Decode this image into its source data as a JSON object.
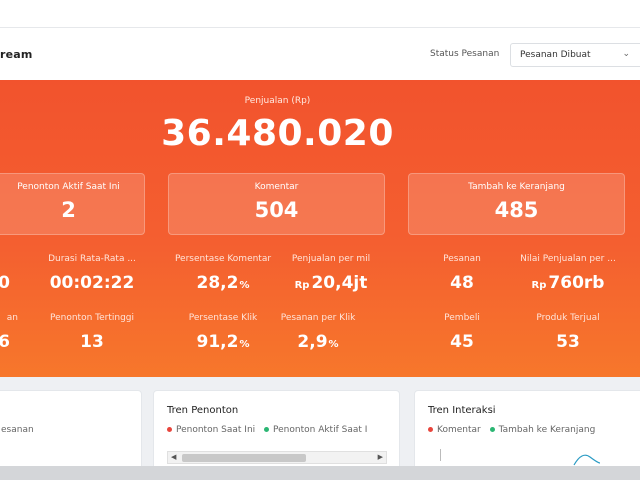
{
  "header": {
    "title": "ream",
    "status_label": "Status Pesanan",
    "status_select": "Pesanan Dibuat"
  },
  "banner": {
    "main_label": "Penjualan (Rp)",
    "main_value": "36.480.020",
    "cards": [
      {
        "label": "Penonton Aktif Saat Ini",
        "value": "2"
      },
      {
        "label": "Komentar",
        "value": "504"
      },
      {
        "label": "Tambah ke Keranjang",
        "value": "485"
      }
    ],
    "metrics_row1": [
      {
        "label": "",
        "value": "0"
      },
      {
        "label": "Durasi Rata-Rata ...",
        "value": "00:02:22"
      },
      {
        "label": "Persentase Komentar",
        "value": "28,2",
        "suffix": "%"
      },
      {
        "label": "Penjualan per mil",
        "prefix": "Rp",
        "value": "20,4jt"
      },
      {
        "label": "Pesanan",
        "value": "48"
      },
      {
        "label": "Nilai Penjualan per ...",
        "prefix": "Rp",
        "value": "760rb"
      }
    ],
    "metrics_row2": [
      {
        "label": "an",
        "value": "6"
      },
      {
        "label": "Penonton Tertinggi",
        "value": "13"
      },
      {
        "label": "Persentase Klik",
        "value": "91,2",
        "suffix": "%"
      },
      {
        "label": "Pesanan per Klik",
        "value": "2,9",
        "suffix": "%"
      },
      {
        "label": "Pembeli",
        "value": "45"
      },
      {
        "label": "Produk Terjual",
        "value": "53"
      }
    ]
  },
  "panels": {
    "left": {
      "legend_text": "esanan"
    },
    "viewers": {
      "title": "Tren Penonton",
      "legend": [
        {
          "label": "Penonton Saat Ini",
          "color": "#e8453c"
        },
        {
          "label": "Penonton Aktif Saat I",
          "color": "#2bb673"
        }
      ]
    },
    "interaction": {
      "title": "Tren Interaksi",
      "legend": [
        {
          "label": "Komentar",
          "color": "#e8453c"
        },
        {
          "label": "Tambah ke Keranjang",
          "color": "#2bb673"
        }
      ]
    }
  },
  "colors": {
    "banner_top": "#f2532d",
    "banner_bottom": "#f7772b",
    "accent_red": "#e8453c",
    "accent_green": "#2bb673"
  },
  "icons": {
    "select_chevron": "chevron-down-icon",
    "scroll_left": "arrow-left-icon",
    "scroll_right": "arrow-right-icon"
  }
}
